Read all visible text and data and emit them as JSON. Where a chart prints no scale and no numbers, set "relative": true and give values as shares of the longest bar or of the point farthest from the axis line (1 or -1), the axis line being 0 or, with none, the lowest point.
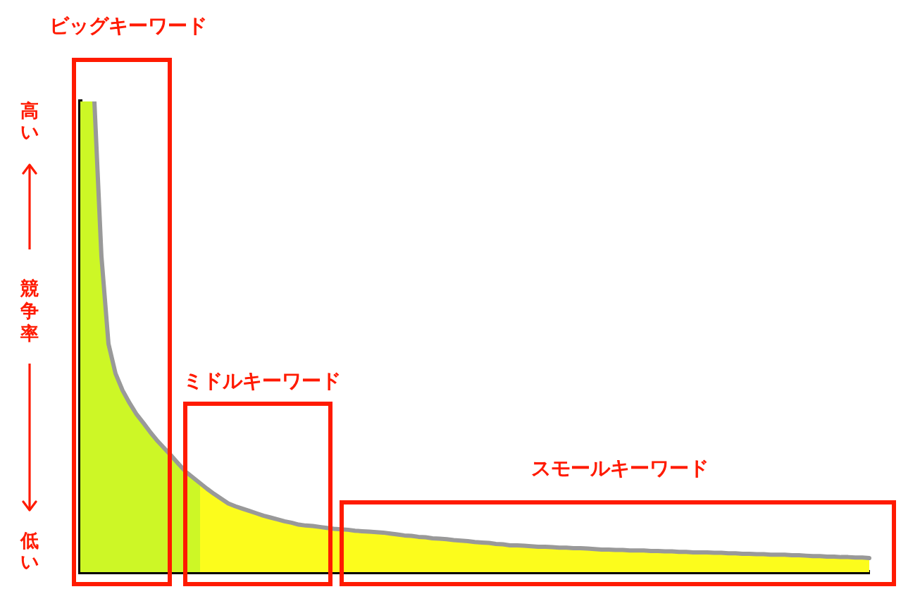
{
  "chart_data": {
    "type": "area",
    "relative": true,
    "ylabel": "競争率",
    "annotations": [
      "ビッグキーワード",
      "ミドルキーワード",
      "スモールキーワード",
      "高い",
      "低い"
    ],
    "categories": [
      null,
      null,
      null,
      null,
      null,
      null,
      null,
      null,
      null,
      null,
      null,
      null,
      null,
      null,
      null,
      null,
      null,
      null,
      null,
      null,
      null,
      null,
      null,
      null,
      null,
      null,
      null,
      null,
      null,
      null,
      null,
      null,
      null,
      null,
      null,
      null,
      null,
      null,
      null,
      null,
      null,
      null,
      null,
      null,
      null,
      null,
      null,
      null,
      null,
      null,
      null,
      null,
      null,
      null,
      null,
      null,
      null,
      null,
      null,
      null,
      null,
      null,
      null,
      null,
      null,
      null,
      null,
      null,
      null,
      null,
      null,
      null,
      null,
      null,
      null,
      null,
      null,
      null,
      null,
      null,
      null,
      null,
      null,
      null,
      null,
      null,
      null,
      null,
      null,
      null,
      null,
      null,
      null,
      null,
      null,
      null,
      null,
      null,
      null,
      null,
      null,
      null,
      null,
      null,
      null,
      null,
      null,
      null,
      null,
      null,
      null,
      null,
      null
    ],
    "series": [
      {
        "color": "#cdf726",
        "values": [
          1,
          1,
          1,
          0.671,
          0.485,
          0.422,
          0.386,
          0.359,
          0.335,
          0.316,
          0.296,
          0.278,
          0.262,
          0.246,
          0.229,
          0.213,
          0.201,
          0.189,
          null,
          null,
          null,
          null,
          null,
          null,
          null,
          null,
          null,
          null,
          null,
          null,
          null,
          null,
          null,
          null,
          null,
          null,
          null,
          null,
          null,
          null,
          null,
          null,
          null,
          null,
          null,
          null,
          null,
          null,
          null,
          null,
          null,
          null,
          null,
          null,
          null,
          null,
          null,
          null,
          null,
          null,
          null,
          null,
          null,
          null,
          null,
          null,
          null,
          null,
          null,
          null,
          null,
          null,
          null,
          null,
          null,
          null,
          null,
          null,
          null,
          null,
          null,
          null,
          null,
          null,
          null,
          null,
          null,
          null,
          null,
          null,
          null,
          null,
          null,
          null,
          null,
          null,
          null,
          null,
          null,
          null,
          null,
          null,
          null,
          null,
          null,
          null,
          null,
          null,
          null,
          null,
          null,
          null,
          null
        ]
      },
      {
        "color": "#fcfc1c",
        "values": [
          null,
          null,
          null,
          null,
          null,
          null,
          null,
          null,
          null,
          null,
          null,
          null,
          null,
          null,
          null,
          null,
          null,
          0.189,
          0.177,
          0.166,
          0.156,
          0.146,
          0.14,
          0.135,
          0.13,
          0.125,
          0.12,
          0.116,
          0.112,
          0.108,
          0.105,
          0.101,
          0.099,
          0.098,
          0.096,
          0.094,
          0.092,
          0.091,
          0.09,
          0.088,
          0.087,
          0.086,
          0.085,
          0.084,
          0.082,
          0.08,
          0.078,
          0.077,
          0.075,
          0.074,
          0.072,
          0.071,
          0.07,
          0.068,
          0.067,
          0.066,
          0.064,
          0.063,
          0.062,
          0.06,
          0.059,
          0.057,
          0.057,
          0.056,
          0.055,
          0.054,
          0.054,
          0.053,
          0.052,
          0.052,
          0.051,
          0.051,
          0.05,
          0.049,
          0.048,
          0.048,
          0.047,
          0.047,
          0.046,
          0.046,
          0.046,
          0.045,
          0.045,
          0.044,
          0.044,
          0.043,
          0.043,
          0.042,
          0.042,
          0.042,
          0.041,
          0.041,
          0.04,
          0.04,
          0.039,
          0.039,
          0.038,
          0.038,
          0.037,
          0.037,
          0.037,
          0.036,
          0.036,
          0.035,
          0.034,
          0.034,
          0.033,
          0.033,
          0.032,
          0.032,
          0.031,
          0.031,
          0.03
        ]
      },
      {
        "type": "line",
        "color": "#999999",
        "values": [
          null,
          null,
          1,
          0.671,
          0.485,
          0.422,
          0.386,
          0.359,
          0.335,
          0.316,
          0.296,
          0.278,
          0.262,
          0.246,
          0.229,
          0.213,
          0.201,
          0.189,
          0.177,
          0.166,
          0.156,
          0.146,
          0.14,
          0.135,
          0.13,
          0.125,
          0.12,
          0.116,
          0.112,
          0.108,
          0.105,
          0.101,
          0.099,
          0.098,
          0.096,
          0.094,
          0.092,
          0.091,
          0.09,
          0.088,
          0.087,
          0.086,
          0.085,
          0.084,
          0.082,
          0.08,
          0.078,
          0.077,
          0.075,
          0.074,
          0.072,
          0.071,
          0.07,
          0.068,
          0.067,
          0.066,
          0.064,
          0.063,
          0.062,
          0.06,
          0.059,
          0.057,
          0.057,
          0.056,
          0.055,
          0.054,
          0.054,
          0.053,
          0.052,
          0.052,
          0.051,
          0.051,
          0.05,
          0.049,
          0.048,
          0.048,
          0.047,
          0.047,
          0.046,
          0.046,
          0.046,
          0.045,
          0.045,
          0.044,
          0.044,
          0.043,
          0.043,
          0.042,
          0.042,
          0.042,
          0.041,
          0.041,
          0.04,
          0.04,
          0.039,
          0.039,
          0.038,
          0.038,
          0.037,
          0.037,
          0.037,
          0.036,
          0.036,
          0.035,
          0.034,
          0.034,
          0.033,
          0.033,
          0.032,
          0.032,
          0.031,
          0.031,
          0.03
        ]
      }
    ]
  }
}
